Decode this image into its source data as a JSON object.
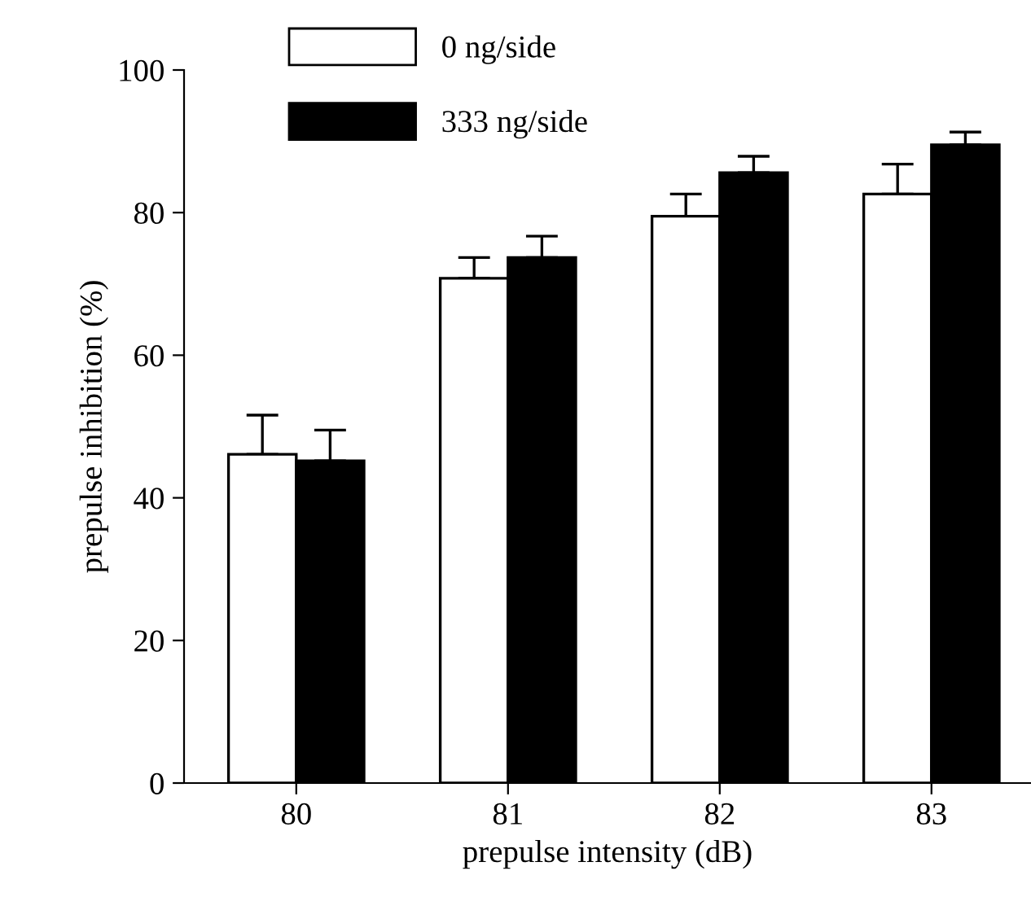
{
  "chart_data": {
    "type": "bar",
    "xlabel": "prepulse intensity (dB)",
    "ylabel": "prepulse inhibition (%)",
    "categories": [
      "80",
      "81",
      "82",
      "83"
    ],
    "series": [
      {
        "name": "0 ng/side",
        "color": "#ffffff",
        "values": [
          46.1,
          70.8,
          79.5,
          82.6
        ],
        "errors": [
          5.5,
          2.9,
          3.1,
          4.2
        ]
      },
      {
        "name": "333 ng/side",
        "color": "#000000",
        "values": [
          45.2,
          73.7,
          85.6,
          89.5
        ],
        "errors": [
          4.3,
          3.0,
          2.3,
          1.8
        ]
      }
    ],
    "ylim": [
      0,
      100
    ],
    "yticks": [
      0,
      20,
      40,
      60,
      80,
      100
    ],
    "grid": false,
    "legend": "top left"
  }
}
